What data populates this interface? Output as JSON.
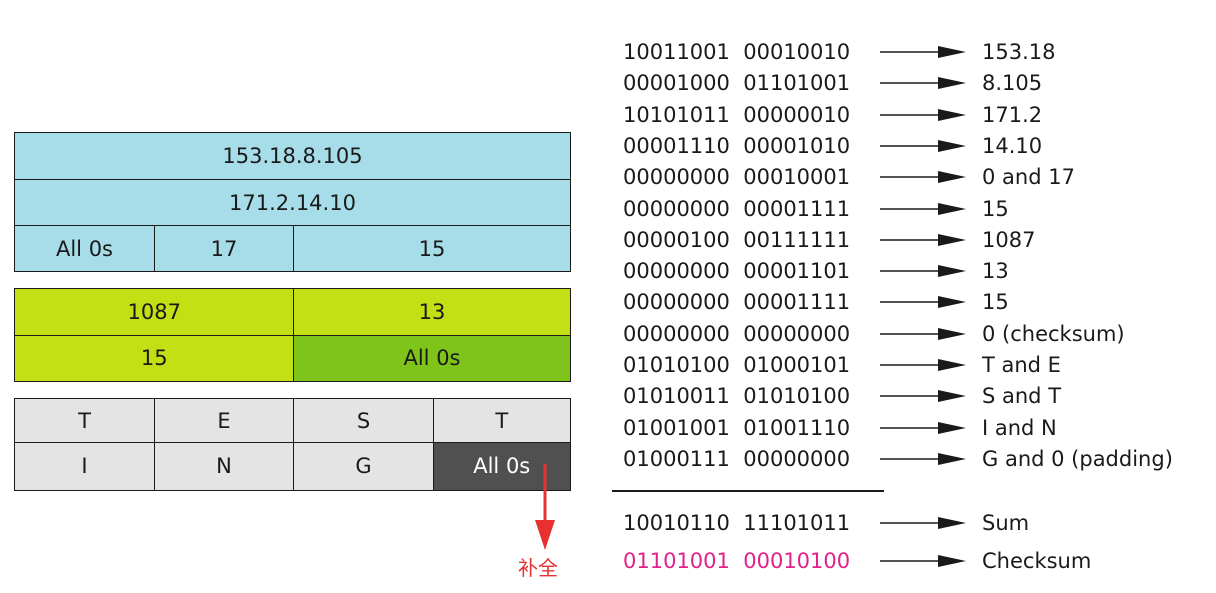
{
  "pseudo_header": {
    "source_ip": "153.18.8.105",
    "destination_ip": "171.2.14.10",
    "zeros": "All 0s",
    "protocol": "17",
    "udp_length": "15"
  },
  "udp_header": {
    "source_port": "1087",
    "destination_port": "13",
    "length": "15",
    "checksum": "All 0s"
  },
  "data": {
    "chars": [
      "T",
      "E",
      "S",
      "T",
      "I",
      "N",
      "G"
    ],
    "padding": "All 0s"
  },
  "calc_rows": [
    {
      "bits": "10011001  00010010",
      "result": "153.18"
    },
    {
      "bits": "00001000  01101001",
      "result": "8.105"
    },
    {
      "bits": "10101011  00000010",
      "result": "171.2"
    },
    {
      "bits": "00001110  00001010",
      "result": "14.10"
    },
    {
      "bits": "00000000  00010001",
      "result": "0 and 17"
    },
    {
      "bits": "00000000  00001111",
      "result": "15"
    },
    {
      "bits": "00000100  00111111",
      "result": "1087"
    },
    {
      "bits": "00000000  00001101",
      "result": "13"
    },
    {
      "bits": "00000000  00001111",
      "result": "15"
    },
    {
      "bits": "00000000  00000000",
      "result": "0 (checksum)"
    },
    {
      "bits": "01010100  01000101",
      "result": "T and E"
    },
    {
      "bits": "01010011  01010100",
      "result": "S and T"
    },
    {
      "bits": "01001001  01001110",
      "result": "I and N"
    },
    {
      "bits": "01000111  00000000",
      "result": "G and 0 (padding)"
    }
  ],
  "sum_row": {
    "bits": "10010110  11101011",
    "result": "Sum"
  },
  "checksum_row": {
    "bits": "01101001  00010100",
    "result": "Checksum"
  },
  "note": "补全",
  "colors": {
    "pseudo_header": "#a6dde8",
    "udp_header": "#c2e013",
    "udp_checksum": "#7ec41a",
    "data": "#e4e4e4",
    "padding": "#505050",
    "checksum_text": "#e0218a",
    "note": "#e83030"
  }
}
